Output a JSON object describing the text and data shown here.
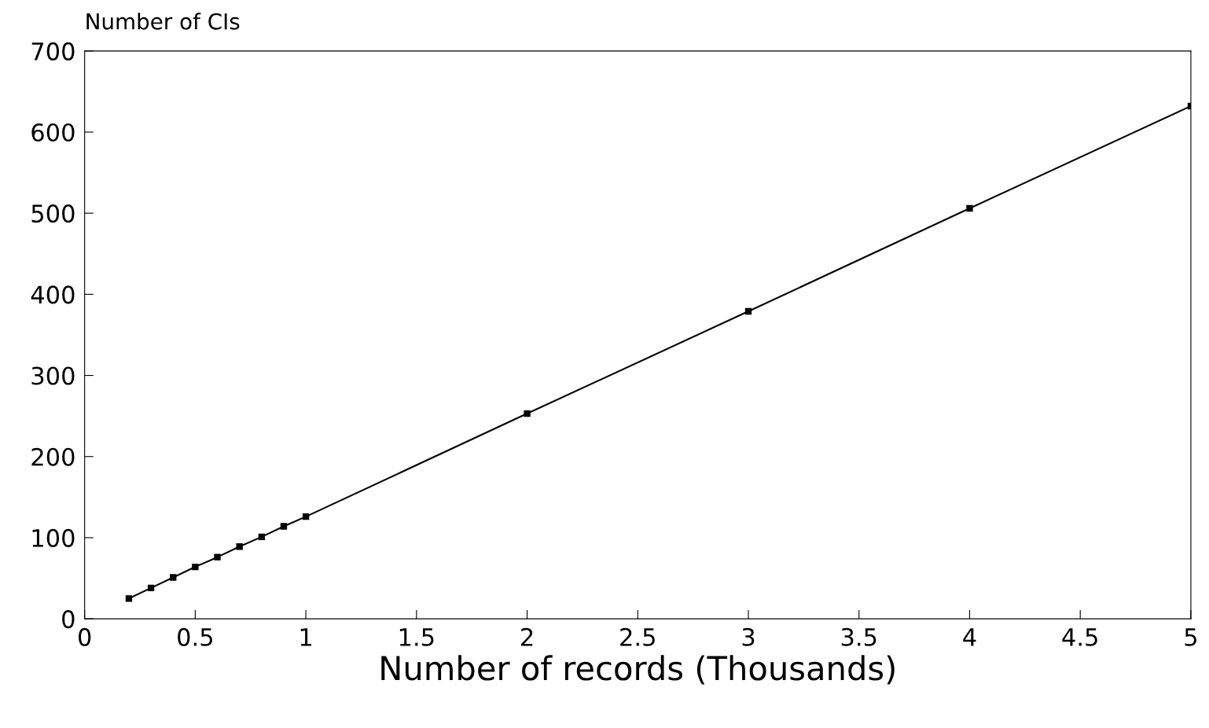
{
  "chart_data": {
    "type": "line",
    "xlabel": "Number of records (Thousands)",
    "ylabel": "Number of CIs",
    "x": [
      0.2,
      0.3,
      0.4,
      0.5,
      0.6,
      0.7,
      0.8,
      0.9,
      1,
      2,
      3,
      4,
      5
    ],
    "series": [
      {
        "color": "#000000",
        "values": [
          25,
          38,
          51,
          64,
          76,
          89,
          101,
          114,
          126,
          253,
          379,
          506,
          632
        ]
      }
    ],
    "xlim": [
      0,
      5
    ],
    "xticks": [
      0,
      0.5,
      1,
      1.5,
      2,
      2.5,
      3,
      3.5,
      4,
      4.5,
      5
    ],
    "ylim": [
      0,
      700
    ],
    "yticks": [
      0,
      100,
      200,
      300,
      400,
      500,
      600,
      700
    ],
    "marker": "square",
    "line_style": "solid",
    "grid": false,
    "legend": false
  }
}
